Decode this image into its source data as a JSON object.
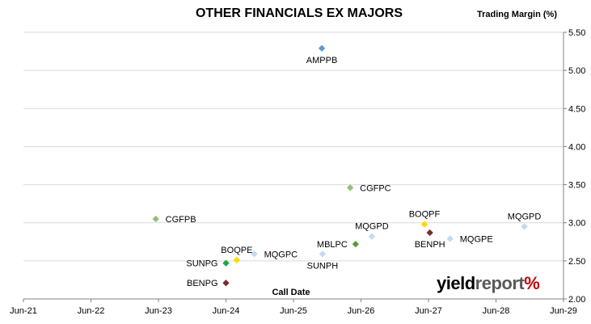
{
  "chart_data": {
    "type": "scatter",
    "title": "OTHER FINANCIALS EX MAJORS",
    "ylabel": "Trading Margin (%)",
    "xlabel": "Call Date",
    "x_tick_labels": [
      "Jun-21",
      "Jun-22",
      "Jun-23",
      "Jun-24",
      "Jun-25",
      "Jun-26",
      "Jun-27",
      "Jun-28",
      "Jun-29"
    ],
    "y_tick_labels": [
      "2.00",
      "2.50",
      "3.00",
      "3.50",
      "4.00",
      "4.50",
      "5.00",
      "5.50"
    ],
    "xlim": [
      2021.5,
      2029.5
    ],
    "ylim": [
      2.0,
      5.5
    ],
    "y_axis_side": "right",
    "grid": "horizontal",
    "points": [
      {
        "label": "AMPPB",
        "x": 2025.92,
        "y": 5.29,
        "color": "#5b9bd5",
        "label_pos": "below"
      },
      {
        "label": "CGFPC",
        "x": 2026.34,
        "y": 3.46,
        "color": "#8fc07a",
        "label_pos": "right"
      },
      {
        "label": "CGFPB",
        "x": 2023.46,
        "y": 3.05,
        "color": "#8fc07a",
        "label_pos": "right"
      },
      {
        "label": "BOQPF",
        "x": 2027.44,
        "y": 2.98,
        "color": "#ffd700",
        "label_pos": "above"
      },
      {
        "label": "BENPH",
        "x": 2027.52,
        "y": 2.87,
        "color": "#7b2c2c",
        "label_pos": "below"
      },
      {
        "label": "MQGPD",
        "x": 2026.66,
        "y": 2.82,
        "color": "#c5d9f1",
        "label_pos": "above"
      },
      {
        "label": "MQGPD",
        "x": 2028.92,
        "y": 2.95,
        "color": "#c5d9f1",
        "label_pos": "above"
      },
      {
        "label": "MQGPE",
        "x": 2027.82,
        "y": 2.79,
        "color": "#c5d9f1",
        "label_pos": "right"
      },
      {
        "label": "MBLPC",
        "x": 2026.42,
        "y": 2.72,
        "color": "#5a9a3a",
        "label_pos": "left"
      },
      {
        "label": "SUNPH",
        "x": 2025.93,
        "y": 2.59,
        "color": "#c5d9f1",
        "label_pos": "below"
      },
      {
        "label": "MQGPC",
        "x": 2024.92,
        "y": 2.59,
        "color": "#c5d9f1",
        "label_pos": "right"
      },
      {
        "label": "BOQPE",
        "x": 2024.66,
        "y": 2.51,
        "color": "#ffd700",
        "label_pos": "above"
      },
      {
        "label": "SUNPG",
        "x": 2024.5,
        "y": 2.47,
        "color": "#1aa84a",
        "label_pos": "left"
      },
      {
        "label": "BENPG",
        "x": 2024.5,
        "y": 2.21,
        "color": "#7b2c2c",
        "label_pos": "left"
      }
    ]
  },
  "logo": {
    "part1": "yield",
    "part2": "report",
    "part3": "%"
  }
}
